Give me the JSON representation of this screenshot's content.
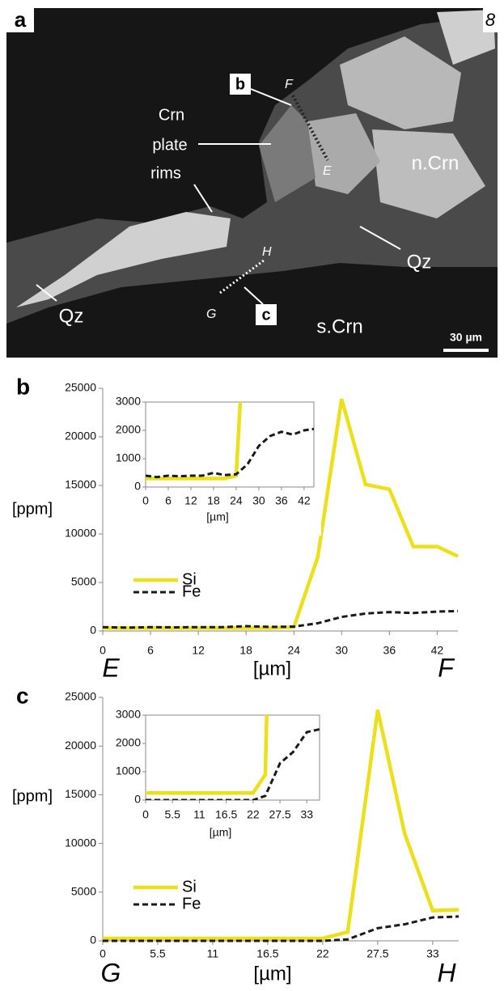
{
  "panel_a": {
    "label": "a",
    "page_number": "8",
    "callouts": {
      "b": "b",
      "c": "c"
    },
    "points": {
      "F": "F",
      "E": "E",
      "H": "H",
      "G": "G"
    },
    "crn_rims": [
      "Crn",
      "plate",
      "rims"
    ],
    "phases": {
      "n_crn": "n.Crn",
      "qz_right": "Qz",
      "qz_left": "Qz",
      "s_crn": "s.Crn"
    },
    "scale_bar": "30 µm"
  },
  "chart_data": [
    {
      "type": "line",
      "panel_label": "b",
      "xlabel": "[µm]",
      "ylabel": "[ppm]",
      "x_start_label": "E",
      "x_end_label": "F",
      "x": [
        0,
        3,
        6,
        9,
        12,
        15,
        18,
        21,
        24,
        27,
        30,
        33,
        36,
        39,
        42,
        44.6
      ],
      "series": [
        {
          "name": "Si",
          "color": "#ece01a",
          "line_style": "solid",
          "values": [
            300,
            300,
            300,
            300,
            300,
            300,
            300,
            300,
            400,
            7600,
            23900,
            15100,
            14600,
            8700,
            8700,
            7700
          ]
        },
        {
          "name": "Fe",
          "color": "#1a1a1a",
          "line_style": "dashed",
          "values": [
            400,
            350,
            400,
            380,
            400,
            400,
            500,
            420,
            450,
            800,
            1450,
            1800,
            1950,
            1850,
            2000,
            2050
          ]
        }
      ],
      "xlim": [
        0,
        44.6
      ],
      "xticks": [
        0,
        6,
        12,
        18,
        24,
        30,
        36,
        42
      ],
      "ylim": [
        0,
        25000
      ],
      "yticks": [
        0,
        5000,
        10000,
        15000,
        20000,
        25000
      ],
      "inset": {
        "xlabel": "[µm]",
        "xlim": [
          0,
          44.6
        ],
        "xticks": [
          0,
          6,
          12,
          18,
          24,
          30,
          36,
          42
        ],
        "ylim": [
          0,
          3000
        ],
        "yticks": [
          0,
          1000,
          2000,
          3000
        ]
      }
    },
    {
      "type": "line",
      "panel_label": "c",
      "xlabel": "[µm]",
      "ylabel": "[ppm]",
      "x_start_label": "G",
      "x_end_label": "H",
      "x": [
        0,
        5.5,
        11,
        16.5,
        22,
        24.5,
        27.5,
        30.2,
        33,
        35.6
      ],
      "series": [
        {
          "name": "Si",
          "color": "#ece01a",
          "line_style": "solid",
          "values": [
            250,
            250,
            250,
            250,
            250,
            900,
            23700,
            11000,
            3100,
            3200
          ]
        },
        {
          "name": "Fe",
          "color": "#1a1a1a",
          "line_style": "dashed",
          "values": [
            0,
            0,
            0,
            0,
            0,
            150,
            1300,
            1700,
            2400,
            2500
          ]
        }
      ],
      "xlim": [
        0,
        35.6
      ],
      "xticks": [
        0,
        5.5,
        11,
        16.5,
        22,
        27.5,
        33
      ],
      "ylim": [
        0,
        25000
      ],
      "yticks": [
        0,
        5000,
        10000,
        15000,
        20000,
        25000
      ],
      "inset": {
        "xlabel": "[µm]",
        "xlim": [
          0,
          35.6
        ],
        "xticks": [
          0,
          5.5,
          11,
          16.5,
          22,
          27.5,
          33
        ],
        "ylim": [
          0,
          3000
        ],
        "yticks": [
          0,
          1000,
          2000,
          3000
        ]
      }
    }
  ]
}
